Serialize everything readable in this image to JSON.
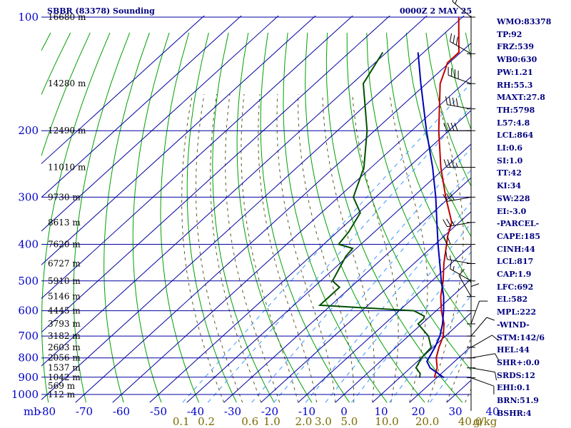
{
  "chart_data": {
    "type": "skew-t log-p sounding",
    "title": "SBBR (83378) Sounding",
    "time_label": "0000Z  2 MAY 25",
    "pressure_axis": {
      "unit_label": "mb",
      "ticks": [
        100,
        200,
        300,
        400,
        500,
        600,
        700,
        800,
        900,
        1000
      ],
      "range": [
        100,
        1000
      ],
      "scale": "log"
    },
    "temperature_axis": {
      "ticks": [
        -80,
        -70,
        -60,
        -50,
        -40,
        -30,
        -20,
        -10,
        0,
        10,
        20,
        30,
        40
      ],
      "range_at_1000mb": [
        -80,
        40
      ]
    },
    "mixing_ratio_labels": [
      "0.1",
      "0.2",
      "0.6",
      "1.0",
      "2.0",
      "3.0",
      "5.0",
      "10.0",
      "20.0",
      "40.0"
    ],
    "mixing_ratio_unit": "g/kg",
    "height_labels": [
      {
        "p": 100,
        "label": "16680 m"
      },
      {
        "p": 150,
        "label": "14280 m"
      },
      {
        "p": 200,
        "label": "12490 m"
      },
      {
        "p": 250,
        "label": "11010 m"
      },
      {
        "p": 300,
        "label": "9730 m"
      },
      {
        "p": 350,
        "label": "8613 m"
      },
      {
        "p": 400,
        "label": "7620 m"
      },
      {
        "p": 450,
        "label": "6727 m"
      },
      {
        "p": 500,
        "label": "5910 m"
      },
      {
        "p": 550,
        "label": "5146 m"
      },
      {
        "p": 600,
        "label": "4445 m"
      },
      {
        "p": 650,
        "label": "3793 m"
      },
      {
        "p": 700,
        "label": "3182 m"
      },
      {
        "p": 750,
        "label": "2603 m"
      },
      {
        "p": 800,
        "label": "2056 m"
      },
      {
        "p": 850,
        "label": "1537 m"
      },
      {
        "p": 900,
        "label": "1042 m"
      },
      {
        "p": 950,
        "label": "569 m"
      },
      {
        "p": 1000,
        "label": "112 m"
      }
    ],
    "series": [
      {
        "name": "Temperature",
        "color": "#c00000",
        "points": [
          {
            "p": 903,
            "t": 19.4
          },
          {
            "p": 880,
            "t": 18.4
          },
          {
            "p": 850,
            "t": 17.2
          },
          {
            "p": 800,
            "t": 14.0
          },
          {
            "p": 750,
            "t": 11.6
          },
          {
            "p": 700,
            "t": 9.4
          },
          {
            "p": 650,
            "t": 6.0
          },
          {
            "p": 600,
            "t": 1.4
          },
          {
            "p": 550,
            "t": -3.0
          },
          {
            "p": 500,
            "t": -7.0
          },
          {
            "p": 450,
            "t": -11.9
          },
          {
            "p": 400,
            "t": -16.9
          },
          {
            "p": 380,
            "t": -19.1
          },
          {
            "p": 350,
            "t": -22.0
          },
          {
            "p": 300,
            "t": -31.1
          },
          {
            "p": 250,
            "t": -41.3
          },
          {
            "p": 200,
            "t": -52.7
          },
          {
            "p": 150,
            "t": -66.3
          },
          {
            "p": 132,
            "t": -70.5
          },
          {
            "p": 124,
            "t": -70.5
          },
          {
            "p": 100,
            "t": -81.0
          }
        ]
      },
      {
        "name": "Dewpoint",
        "color": "#005000",
        "points": [
          {
            "p": 903,
            "t": 15.4
          },
          {
            "p": 880,
            "t": 14.3
          },
          {
            "p": 850,
            "t": 11.5
          },
          {
            "p": 800,
            "t": 10.0
          },
          {
            "p": 750,
            "t": 9.5
          },
          {
            "p": 700,
            "t": 5.4
          },
          {
            "p": 650,
            "t": -1.0
          },
          {
            "p": 630,
            "t": -1.0
          },
          {
            "p": 620,
            "t": -1.6
          },
          {
            "p": 600,
            "t": -6.0
          },
          {
            "p": 580,
            "t": -33.0
          },
          {
            "p": 520,
            "t": -33.0
          },
          {
            "p": 500,
            "t": -36.8
          },
          {
            "p": 430,
            "t": -40.5
          },
          {
            "p": 410,
            "t": -41.0
          },
          {
            "p": 400,
            "t": -46.0
          },
          {
            "p": 370,
            "t": -47.0
          },
          {
            "p": 330,
            "t": -49.5
          },
          {
            "p": 300,
            "t": -56.0
          },
          {
            "p": 250,
            "t": -62.0
          },
          {
            "p": 200,
            "t": -72.0
          },
          {
            "p": 150,
            "t": -87.0
          },
          {
            "p": 124,
            "t": -91.0
          }
        ]
      },
      {
        "name": "Parcel",
        "color": "#0000b4",
        "points": [
          {
            "p": 903,
            "t": 22.0
          },
          {
            "p": 850,
            "t": 15.3
          },
          {
            "p": 817,
            "t": 12.5
          },
          {
            "p": 750,
            "t": 10.5
          },
          {
            "p": 700,
            "t": 8.5
          },
          {
            "p": 650,
            "t": 5.6
          },
          {
            "p": 600,
            "t": 2.0
          },
          {
            "p": 550,
            "t": -2.2
          },
          {
            "p": 500,
            "t": -7.5
          },
          {
            "p": 450,
            "t": -13.0
          },
          {
            "p": 400,
            "t": -19.2
          },
          {
            "p": 350,
            "t": -26.0
          },
          {
            "p": 300,
            "t": -33.8
          },
          {
            "p": 250,
            "t": -43.5
          },
          {
            "p": 200,
            "t": -56.0
          },
          {
            "p": 150,
            "t": -71.5
          },
          {
            "p": 124,
            "t": -81.5
          }
        ]
      }
    ],
    "wind_profile": [
      {
        "p": 903,
        "dir": 110,
        "spd": 10
      },
      {
        "p": 850,
        "dir": 100,
        "spd": 10
      },
      {
        "p": 800,
        "dir": 80,
        "spd": 10
      },
      {
        "p": 750,
        "dir": 60,
        "spd": 10
      },
      {
        "p": 700,
        "dir": 40,
        "spd": 10
      },
      {
        "p": 650,
        "dir": 20,
        "spd": 10
      },
      {
        "p": 600,
        "dir": 0,
        "spd": 10
      },
      {
        "p": 550,
        "dir": 330,
        "spd": 10
      },
      {
        "p": 500,
        "dir": 300,
        "spd": 15
      },
      {
        "p": 450,
        "dir": 280,
        "spd": 15
      },
      {
        "p": 400,
        "dir": 270,
        "spd": 20
      },
      {
        "p": 350,
        "dir": 260,
        "spd": 25
      },
      {
        "p": 300,
        "dir": 260,
        "spd": 30
      },
      {
        "p": 250,
        "dir": 270,
        "spd": 35
      },
      {
        "p": 200,
        "dir": 270,
        "spd": 40
      },
      {
        "p": 175,
        "dir": 280,
        "spd": 40
      },
      {
        "p": 150,
        "dir": 290,
        "spd": 40
      },
      {
        "p": 125,
        "dir": 300,
        "spd": 30
      },
      {
        "p": 100,
        "dir": 310,
        "spd": 20
      }
    ],
    "grid": true,
    "legend": "none"
  },
  "indices": [
    "WMO:83378",
    "TP:92",
    "FRZ:539",
    "WB0:630",
    "PW:1.21",
    "RH:55.3",
    "MAXT:27.8",
    "TH:5798",
    "L57:4.8",
    "LCL:864",
    "LI:0.6",
    "SI:1.0",
    "TT:42",
    "KI:34",
    "SW:228",
    "EI:-3.0",
    "-PARCEL-",
    "CAPE:185",
    "CINH:44",
    "LCL:817",
    "CAP:1.9",
    "LFC:692",
    "EL:582",
    "MPL:222",
    "-WIND-",
    "STM:142/6",
    "HEL:44",
    "SHR+:0.0",
    "SRDS:12",
    "EHI:0.1",
    "BRN:51.9",
    "BSHR:4"
  ],
  "colors": {
    "isobar": "#0000a0",
    "isotherm": "#0000a0",
    "dry_adiabat": "#00a000",
    "moist_adiabat": "#5a5a28",
    "mixing_ratio": "#3c96ff",
    "text": "#000080"
  }
}
